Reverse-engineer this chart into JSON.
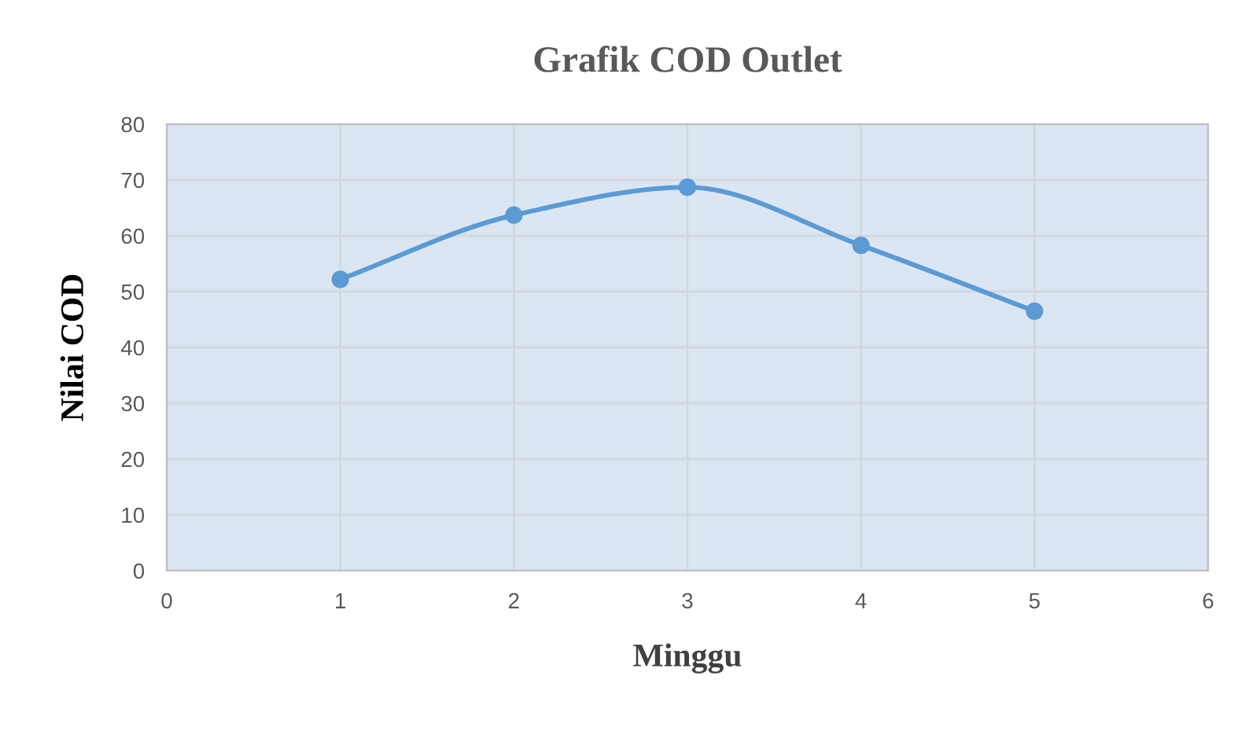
{
  "chart_data": {
    "type": "line",
    "title": "Grafik COD Outlet",
    "xlabel": "Minggu",
    "ylabel": "Nilai COD",
    "x": [
      1,
      2,
      3,
      4,
      5
    ],
    "series": [
      {
        "color": "#5b9bd5",
        "values": [
          52.2,
          63.7,
          68.7,
          58.3,
          46.5
        ]
      }
    ],
    "xlim": [
      0,
      6
    ],
    "xticks": [
      0,
      1,
      2,
      3,
      4,
      5,
      6
    ],
    "ylim": [
      0,
      80
    ],
    "yticks": [
      0,
      10,
      20,
      30,
      40,
      50,
      60,
      70,
      80
    ],
    "grid": true,
    "marker": "circle",
    "line_style": "solid",
    "legend": false
  }
}
